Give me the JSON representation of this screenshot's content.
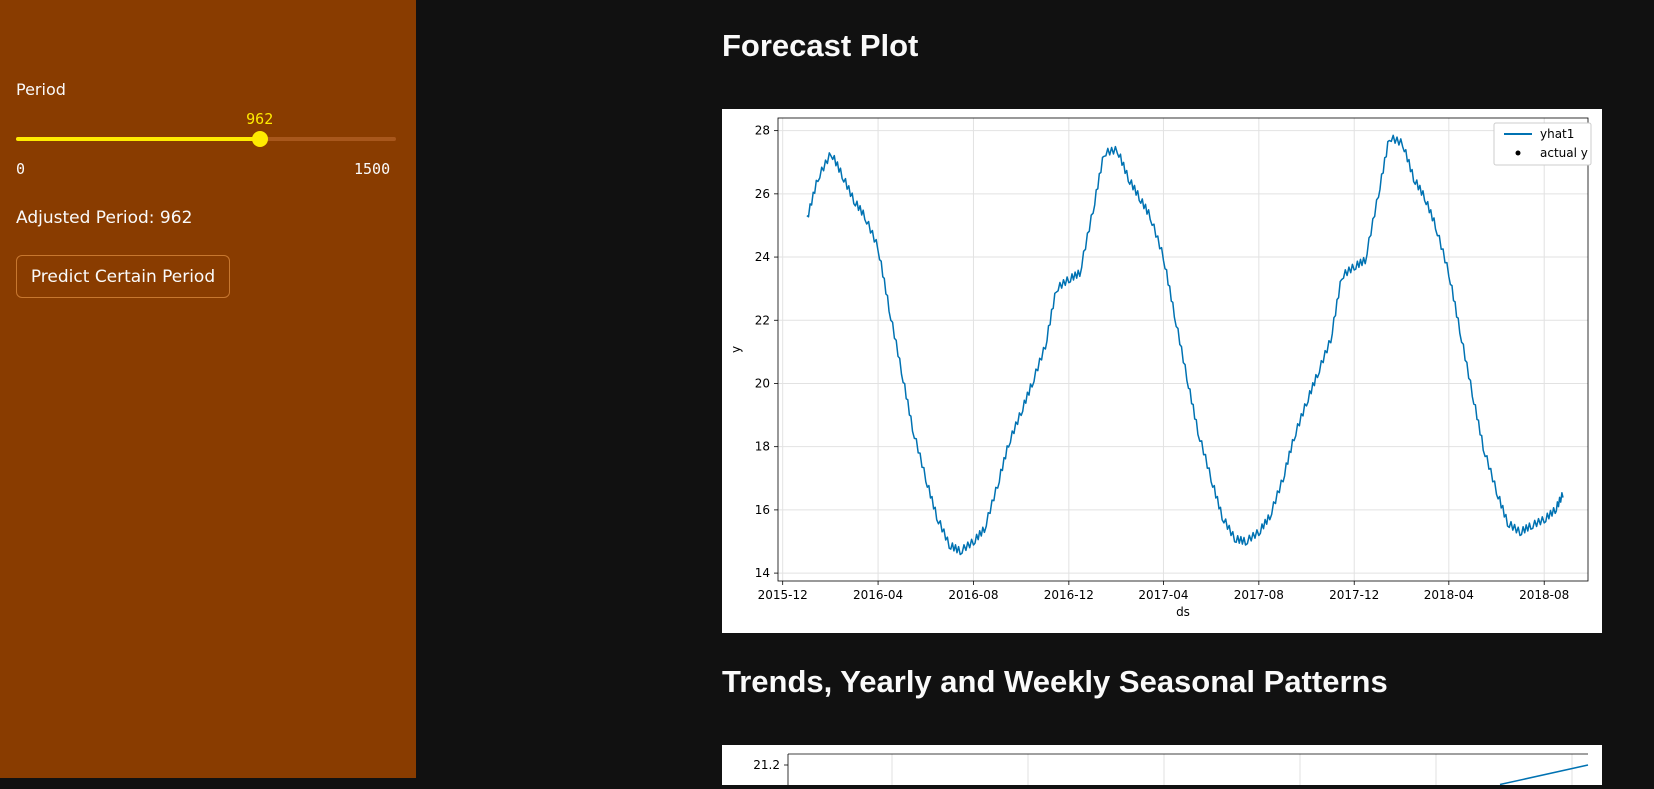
{
  "sidebar": {
    "period_label": "Period",
    "slider": {
      "value": "962",
      "min": "0",
      "max": "1500",
      "fraction": 0.6413
    },
    "adjusted_text": "Adjusted Period: 962",
    "predict_button": "Predict Certain Period"
  },
  "colors": {
    "sidebar_bg": "#893c00",
    "main_bg": "#111111",
    "slider_accent": "#ffeb00",
    "series_color": "#0072b2"
  },
  "main": {
    "forecast_title": "Forecast Plot",
    "trends_title": "Trends, Yearly and Weekly Seasonal Patterns"
  },
  "chart_data": [
    {
      "type": "line",
      "xlabel": "ds",
      "ylabel": "y",
      "ylim": [
        13.75,
        28.4
      ],
      "xlim": [
        "2015-11-25",
        "2018-09-26"
      ],
      "yticks": [
        14,
        16,
        18,
        20,
        22,
        24,
        26,
        28
      ],
      "xticks": [
        "2015-12",
        "2016-04",
        "2016-08",
        "2016-12",
        "2017-04",
        "2017-08",
        "2017-12",
        "2018-04",
        "2018-08"
      ],
      "grid": true,
      "legend": {
        "position": "top-right",
        "entries": [
          "yhat1",
          "actual y"
        ]
      },
      "series": [
        {
          "name": "yhat1",
          "x": [
            "2016-01-01",
            "2016-01-15",
            "2016-02-01",
            "2016-02-15",
            "2016-03-01",
            "2016-03-15",
            "2016-04-01",
            "2016-04-15",
            "2016-05-01",
            "2016-05-15",
            "2016-06-01",
            "2016-06-15",
            "2016-07-01",
            "2016-07-15",
            "2016-08-01",
            "2016-08-15",
            "2016-09-01",
            "2016-09-15",
            "2016-10-01",
            "2016-10-15",
            "2016-11-01",
            "2016-11-15",
            "2016-12-01",
            "2016-12-15",
            "2017-01-01",
            "2017-01-15",
            "2017-02-01",
            "2017-02-15",
            "2017-03-01",
            "2017-03-15",
            "2017-04-01",
            "2017-04-15",
            "2017-05-01",
            "2017-05-15",
            "2017-06-01",
            "2017-06-15",
            "2017-07-01",
            "2017-07-15",
            "2017-08-01",
            "2017-08-15",
            "2017-09-01",
            "2017-09-15",
            "2017-10-01",
            "2017-10-15",
            "2017-11-01",
            "2017-11-15",
            "2017-12-01",
            "2017-12-15",
            "2018-01-01",
            "2018-01-15",
            "2018-02-01",
            "2018-02-15",
            "2018-03-01",
            "2018-03-15",
            "2018-04-01",
            "2018-04-15",
            "2018-05-01",
            "2018-05-15",
            "2018-06-01",
            "2018-06-15",
            "2018-07-01",
            "2018-07-15",
            "2018-08-01",
            "2018-08-15",
            "2018-08-25"
          ],
          "y": [
            25.2,
            26.5,
            27.3,
            26.6,
            25.8,
            25.3,
            24.3,
            22.4,
            20.4,
            18.6,
            17.0,
            15.8,
            14.9,
            14.7,
            15.0,
            15.4,
            16.8,
            18.1,
            19.1,
            20.0,
            21.2,
            23.0,
            23.3,
            23.5,
            25.5,
            27.3,
            27.4,
            26.5,
            25.9,
            25.3,
            24.0,
            22.2,
            20.2,
            18.5,
            17.0,
            15.8,
            15.1,
            15.0,
            15.3,
            15.8,
            17.0,
            18.3,
            19.4,
            20.3,
            21.4,
            23.4,
            23.7,
            23.9,
            26.0,
            27.8,
            27.6,
            26.5,
            25.9,
            25.0,
            23.5,
            21.7,
            19.7,
            18.0,
            16.6,
            15.6,
            15.3,
            15.5,
            15.7,
            16.0,
            16.5
          ]
        },
        {
          "name": "actual y",
          "x": [],
          "y": []
        }
      ]
    },
    {
      "type": "line",
      "yticks": [
        21.2
      ],
      "series": [
        {
          "x": [
            0.89,
            1.0
          ],
          "y": [
            20.45,
            21.2
          ]
        }
      ]
    }
  ]
}
